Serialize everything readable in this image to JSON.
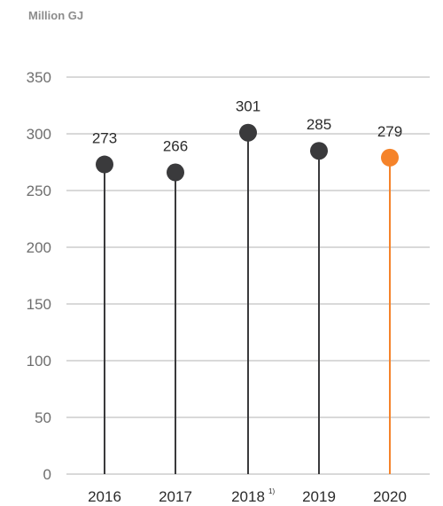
{
  "chart_data": {
    "type": "lollipop",
    "unit_label": "Million GJ",
    "categories": [
      "2016",
      "2017",
      "2018",
      "2019",
      "2020"
    ],
    "footnote_markers": [
      "",
      "",
      "1)",
      "",
      ""
    ],
    "values": [
      273,
      266,
      301,
      285,
      279
    ],
    "ylim": [
      0,
      350
    ],
    "y_ticks": [
      "0",
      "50",
      "100",
      "150",
      "200",
      "250",
      "300",
      "350"
    ],
    "grid": true,
    "colors": {
      "default": "#3a3a3c",
      "highlight": "#f5832a",
      "grid": "#b3b3b3",
      "unit_label": "#8c8c8c",
      "tick_label": "#6e6e6e",
      "value_label": "#2b2b2b"
    },
    "highlight_index": 4
  }
}
